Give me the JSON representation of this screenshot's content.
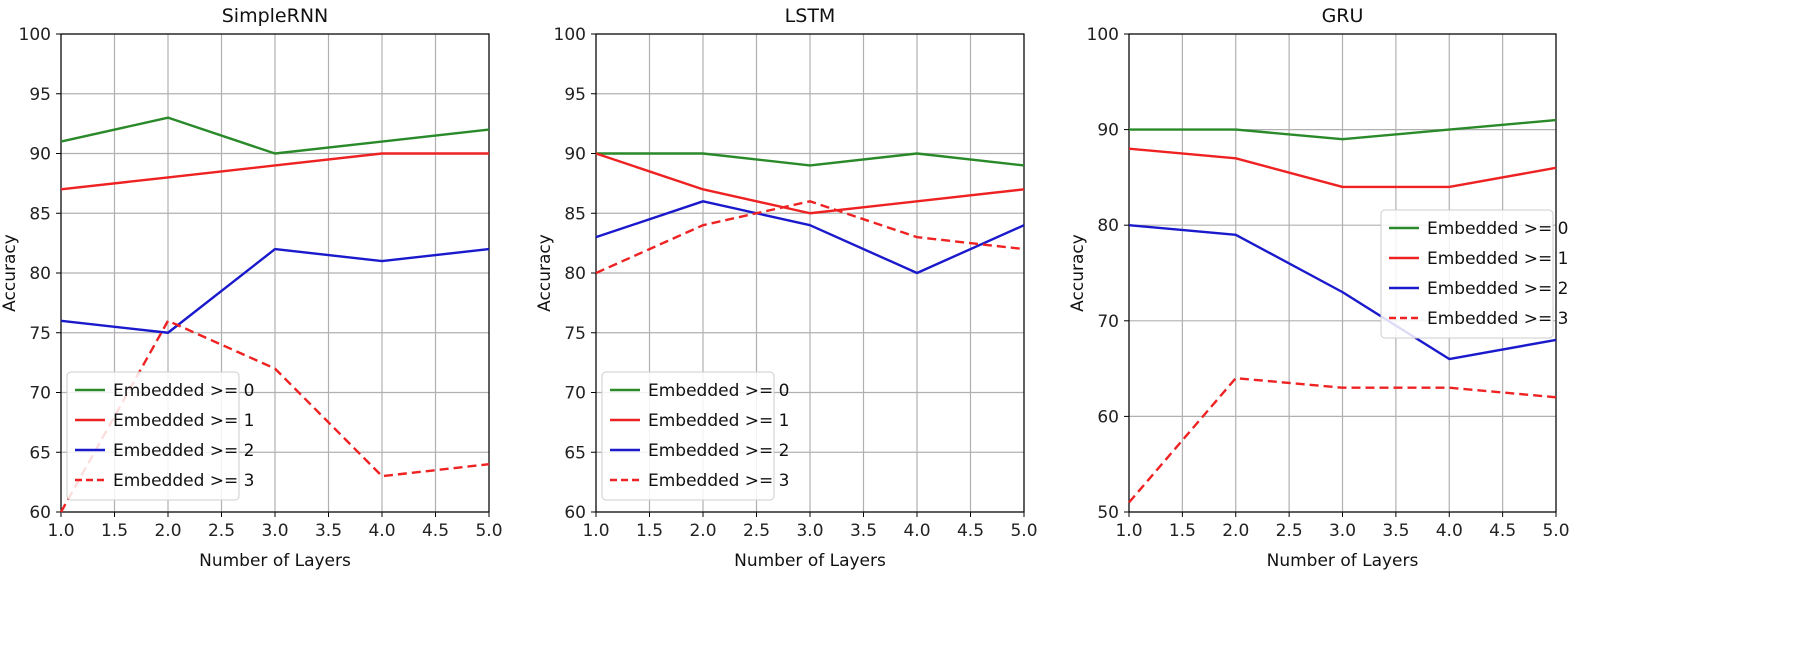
{
  "colors": {
    "green": "#2a8a2a",
    "red": "#ee2222",
    "blue": "#1a1acc",
    "red_dashed": "#ee2222",
    "grid": "#b0b0b0",
    "axis": "#000000"
  },
  "chart_data": [
    {
      "type": "line",
      "title": "SimpleRNN",
      "xlabel": "Number of Layers",
      "ylabel": "Accuracy",
      "xlim": [
        1.0,
        5.0
      ],
      "ylim": [
        60,
        100
      ],
      "xticks": [
        "1.0",
        "1.5",
        "2.0",
        "2.5",
        "3.0",
        "3.5",
        "4.0",
        "4.5",
        "5.0"
      ],
      "yticks": [
        "60",
        "65",
        "70",
        "75",
        "80",
        "85",
        "90",
        "95",
        "100"
      ],
      "x": [
        1,
        2,
        3,
        4,
        5
      ],
      "grid": true,
      "legend_position": "lower-left",
      "series": [
        {
          "name": "Embedded >= 0",
          "color": "green",
          "style": "solid",
          "values": [
            91,
            93,
            90,
            91,
            92
          ]
        },
        {
          "name": "Embedded >= 1",
          "color": "red",
          "style": "solid",
          "values": [
            87,
            88,
            89,
            90,
            90
          ]
        },
        {
          "name": "Embedded >= 2",
          "color": "blue",
          "style": "solid",
          "values": [
            76,
            75,
            82,
            81,
            82
          ]
        },
        {
          "name": "Embedded >= 3",
          "color": "red_dashed",
          "style": "dashed",
          "values": [
            60,
            76,
            72,
            63,
            64
          ]
        }
      ]
    },
    {
      "type": "line",
      "title": "LSTM",
      "xlabel": "Number of Layers",
      "ylabel": "Accuracy",
      "xlim": [
        1.0,
        5.0
      ],
      "ylim": [
        60,
        100
      ],
      "xticks": [
        "1.0",
        "1.5",
        "2.0",
        "2.5",
        "3.0",
        "3.5",
        "4.0",
        "4.5",
        "5.0"
      ],
      "yticks": [
        "60",
        "65",
        "70",
        "75",
        "80",
        "85",
        "90",
        "95",
        "100"
      ],
      "x": [
        1,
        2,
        3,
        4,
        5
      ],
      "grid": true,
      "legend_position": "lower-left",
      "series": [
        {
          "name": "Embedded >= 0",
          "color": "green",
          "style": "solid",
          "values": [
            90,
            90,
            89,
            90,
            89
          ]
        },
        {
          "name": "Embedded >= 1",
          "color": "red",
          "style": "solid",
          "values": [
            90,
            87,
            85,
            86,
            87
          ]
        },
        {
          "name": "Embedded >= 2",
          "color": "blue",
          "style": "solid",
          "values": [
            83,
            86,
            84,
            80,
            84
          ]
        },
        {
          "name": "Embedded >= 3",
          "color": "red_dashed",
          "style": "dashed",
          "values": [
            80,
            84,
            86,
            83,
            82
          ]
        }
      ]
    },
    {
      "type": "line",
      "title": "GRU",
      "xlabel": "Number of Layers",
      "ylabel": "Accuracy",
      "xlim": [
        1.0,
        5.0
      ],
      "ylim": [
        50,
        100
      ],
      "xticks": [
        "1.0",
        "1.5",
        "2.0",
        "2.5",
        "3.0",
        "3.5",
        "4.0",
        "4.5",
        "5.0"
      ],
      "yticks": [
        "50",
        "60",
        "70",
        "80",
        "90",
        "100"
      ],
      "x": [
        1,
        2,
        3,
        4,
        5
      ],
      "grid": true,
      "legend_position": "center-right",
      "series": [
        {
          "name": "Embedded >= 0",
          "color": "green",
          "style": "solid",
          "values": [
            90,
            90,
            89,
            90,
            91
          ]
        },
        {
          "name": "Embedded >= 1",
          "color": "red",
          "style": "solid",
          "values": [
            88,
            87,
            84,
            84,
            86
          ]
        },
        {
          "name": "Embedded >= 2",
          "color": "blue",
          "style": "solid",
          "values": [
            80,
            79,
            73,
            66,
            68
          ]
        },
        {
          "name": "Embedded >= 3",
          "color": "red_dashed",
          "style": "dashed",
          "values": [
            51,
            64,
            63,
            63,
            62
          ]
        }
      ]
    }
  ]
}
